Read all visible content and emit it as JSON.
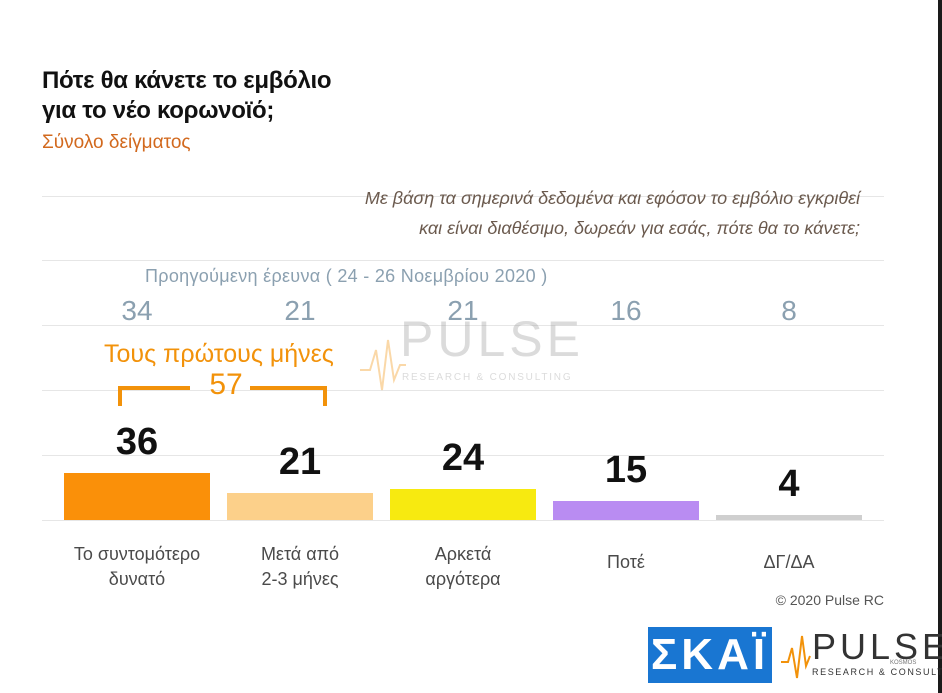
{
  "title_line1": "Πότε θα κάνετε το εμβόλιο",
  "title_line2": "για το νέο κορωνοϊό;",
  "subtitle": "Σύνολο δείγματος",
  "question_line1": "Με βάση τα σημερινά δεδομένα και εφόσον το εμβόλιο εγκριθεί",
  "question_line2": "και είναι διαθέσιμο, δωρεάν για εσάς, πότε θα το κάνετε;",
  "previous_survey_label": "Προηγούμενη έρευνα  ( 24 - 26  Νοεμβρίου  2020 )",
  "bracket": {
    "label": "Τους πρώτους μήνες",
    "value": "57"
  },
  "copyright": "© 2020 Pulse RC",
  "logos": {
    "skai": "ΣΚΑΪ",
    "pulse": "PULSE",
    "pulse_tagline": "RESEARCH & CONSULTING",
    "pulse_kosmos": "KOSMOS"
  },
  "colors": {
    "title": "#111111",
    "subtitle": "#d2691e",
    "previous": "#8ba0b0",
    "bracket": "#f2920a",
    "skai_blue": "#1976d2"
  },
  "chart_data": {
    "type": "bar",
    "categories": [
      [
        "Το συντομότερο",
        "δυνατό"
      ],
      [
        "Μετά από",
        "2-3 μήνες"
      ],
      [
        "Αρκετά",
        "αργότερα"
      ],
      [
        "Ποτέ"
      ],
      [
        "ΔΓ/ΔΑ"
      ]
    ],
    "values": [
      36,
      21,
      24,
      15,
      4
    ],
    "previous_values": [
      34,
      21,
      21,
      16,
      8
    ],
    "bar_colors": [
      "#fa9009",
      "#fcd08a",
      "#f7ea10",
      "#b98cf2",
      "#cfcfcf"
    ],
    "ylim": [
      0,
      100
    ]
  }
}
